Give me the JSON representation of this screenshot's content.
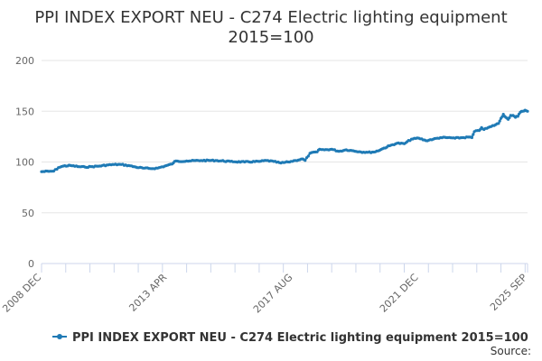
{
  "chart_data": {
    "type": "line",
    "title_lines": [
      "PPI INDEX EXPORT NEU - C274 Electric lighting equipment",
      "2015=100"
    ],
    "xlabel": "",
    "ylabel": "",
    "ylim": [
      0,
      200
    ],
    "yticks": [
      "0",
      "50",
      "100",
      "150",
      "200"
    ],
    "xticks": [
      "2008 DEC",
      "2013 APR",
      "2017 AUG",
      "2021 DEC",
      "2025 SEP"
    ],
    "x_range": [
      "2008-12",
      "2025-09"
    ],
    "grid": "horizontal",
    "legend_position": "bottom",
    "source_label": "Source:",
    "color": "#1f7ab5",
    "series": [
      {
        "name": "PPI INDEX EXPORT NEU - C274 Electric lighting equipment 2015=100",
        "points": [
          [
            "2008-12",
            90.5
          ],
          [
            "2009-03",
            90.8
          ],
          [
            "2009-05",
            91
          ],
          [
            "2009-07",
            94.5
          ],
          [
            "2009-09",
            96
          ],
          [
            "2009-12",
            96.5
          ],
          [
            "2010-03",
            95.5
          ],
          [
            "2010-06",
            95
          ],
          [
            "2010-09",
            95.5
          ],
          [
            "2010-12",
            96
          ],
          [
            "2011-03",
            97
          ],
          [
            "2011-06",
            97.5
          ],
          [
            "2011-09",
            97.5
          ],
          [
            "2011-12",
            96.5
          ],
          [
            "2012-03",
            95
          ],
          [
            "2012-06",
            94
          ],
          [
            "2012-09",
            93.5
          ],
          [
            "2012-12",
            94
          ],
          [
            "2013-03",
            96
          ],
          [
            "2013-06",
            98
          ],
          [
            "2013-07",
            100.5
          ],
          [
            "2013-12",
            101
          ],
          [
            "2014-06",
            101.5
          ],
          [
            "2014-12",
            101.5
          ],
          [
            "2015-06",
            100.5
          ],
          [
            "2015-12",
            100
          ],
          [
            "2016-06",
            100.5
          ],
          [
            "2016-09",
            101.5
          ],
          [
            "2016-12",
            100.5
          ],
          [
            "2017-03",
            99
          ],
          [
            "2017-06",
            100
          ],
          [
            "2017-09",
            101.5
          ],
          [
            "2017-12",
            103
          ],
          [
            "2018-01",
            101.5
          ],
          [
            "2018-03",
            108.5
          ],
          [
            "2018-06",
            110
          ],
          [
            "2018-07",
            112.5
          ],
          [
            "2018-09",
            112
          ],
          [
            "2018-12",
            112.5
          ],
          [
            "2019-03",
            110.5
          ],
          [
            "2019-06",
            112
          ],
          [
            "2019-09",
            111
          ],
          [
            "2019-12",
            110
          ],
          [
            "2020-03",
            109.5
          ],
          [
            "2020-06",
            110
          ],
          [
            "2020-09",
            113
          ],
          [
            "2020-12",
            116
          ],
          [
            "2021-03",
            118.5
          ],
          [
            "2021-06",
            118
          ],
          [
            "2021-09",
            122.5
          ],
          [
            "2021-12",
            123.5
          ],
          [
            "2022-03",
            121
          ],
          [
            "2022-06",
            122.5
          ],
          [
            "2022-09",
            124
          ],
          [
            "2022-12",
            124
          ],
          [
            "2023-03",
            123.5
          ],
          [
            "2023-06",
            124
          ],
          [
            "2023-09",
            124.5
          ],
          [
            "2023-10",
            124
          ],
          [
            "2023-11",
            130
          ],
          [
            "2024-01",
            131
          ],
          [
            "2024-02",
            134
          ],
          [
            "2024-03",
            132
          ],
          [
            "2024-06",
            135
          ],
          [
            "2024-09",
            138
          ],
          [
            "2024-10",
            143
          ],
          [
            "2024-11",
            147
          ],
          [
            "2024-12",
            144
          ],
          [
            "2025-01",
            142
          ],
          [
            "2025-02",
            146
          ],
          [
            "2025-03",
            146
          ],
          [
            "2025-04",
            144
          ],
          [
            "2025-05",
            145
          ],
          [
            "2025-06",
            149
          ],
          [
            "2025-07",
            150
          ],
          [
            "2025-08",
            151
          ],
          [
            "2025-09",
            150
          ]
        ]
      }
    ]
  }
}
